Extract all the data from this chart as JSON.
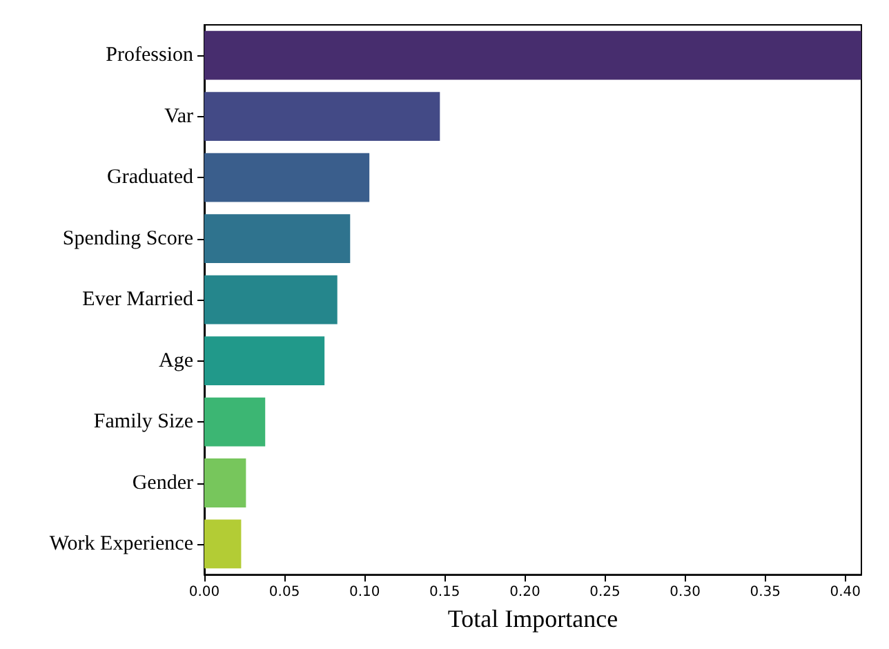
{
  "chart_data": {
    "type": "bar",
    "orientation": "horizontal",
    "xlabel": "Total Importance",
    "categories": [
      "Profession",
      "Var",
      "Graduated",
      "Spending Score",
      "Ever Married",
      "Age",
      "Family Size",
      "Gender",
      "Work Experience"
    ],
    "values": [
      0.41,
      0.147,
      0.103,
      0.091,
      0.083,
      0.075,
      0.038,
      0.026,
      0.023
    ],
    "colors": [
      "#472d6e",
      "#434a86",
      "#3a5e8c",
      "#2f738e",
      "#25868c",
      "#21998a",
      "#3cb673",
      "#77c65c",
      "#b3cc35"
    ],
    "xlim": [
      0,
      0.41
    ],
    "xticks": [
      {
        "value": 0,
        "label": "0.00"
      },
      {
        "value": 0.05,
        "label": "0.05"
      },
      {
        "value": 0.1,
        "label": "0.10"
      },
      {
        "value": 0.15,
        "label": "0.15"
      },
      {
        "value": 0.2,
        "label": "0.20"
      },
      {
        "value": 0.25,
        "label": "0.25"
      },
      {
        "value": 0.3,
        "label": "0.30"
      },
      {
        "value": 0.35,
        "label": "0.35"
      },
      {
        "value": 0.4,
        "label": "0.40"
      }
    ],
    "grid": false
  }
}
